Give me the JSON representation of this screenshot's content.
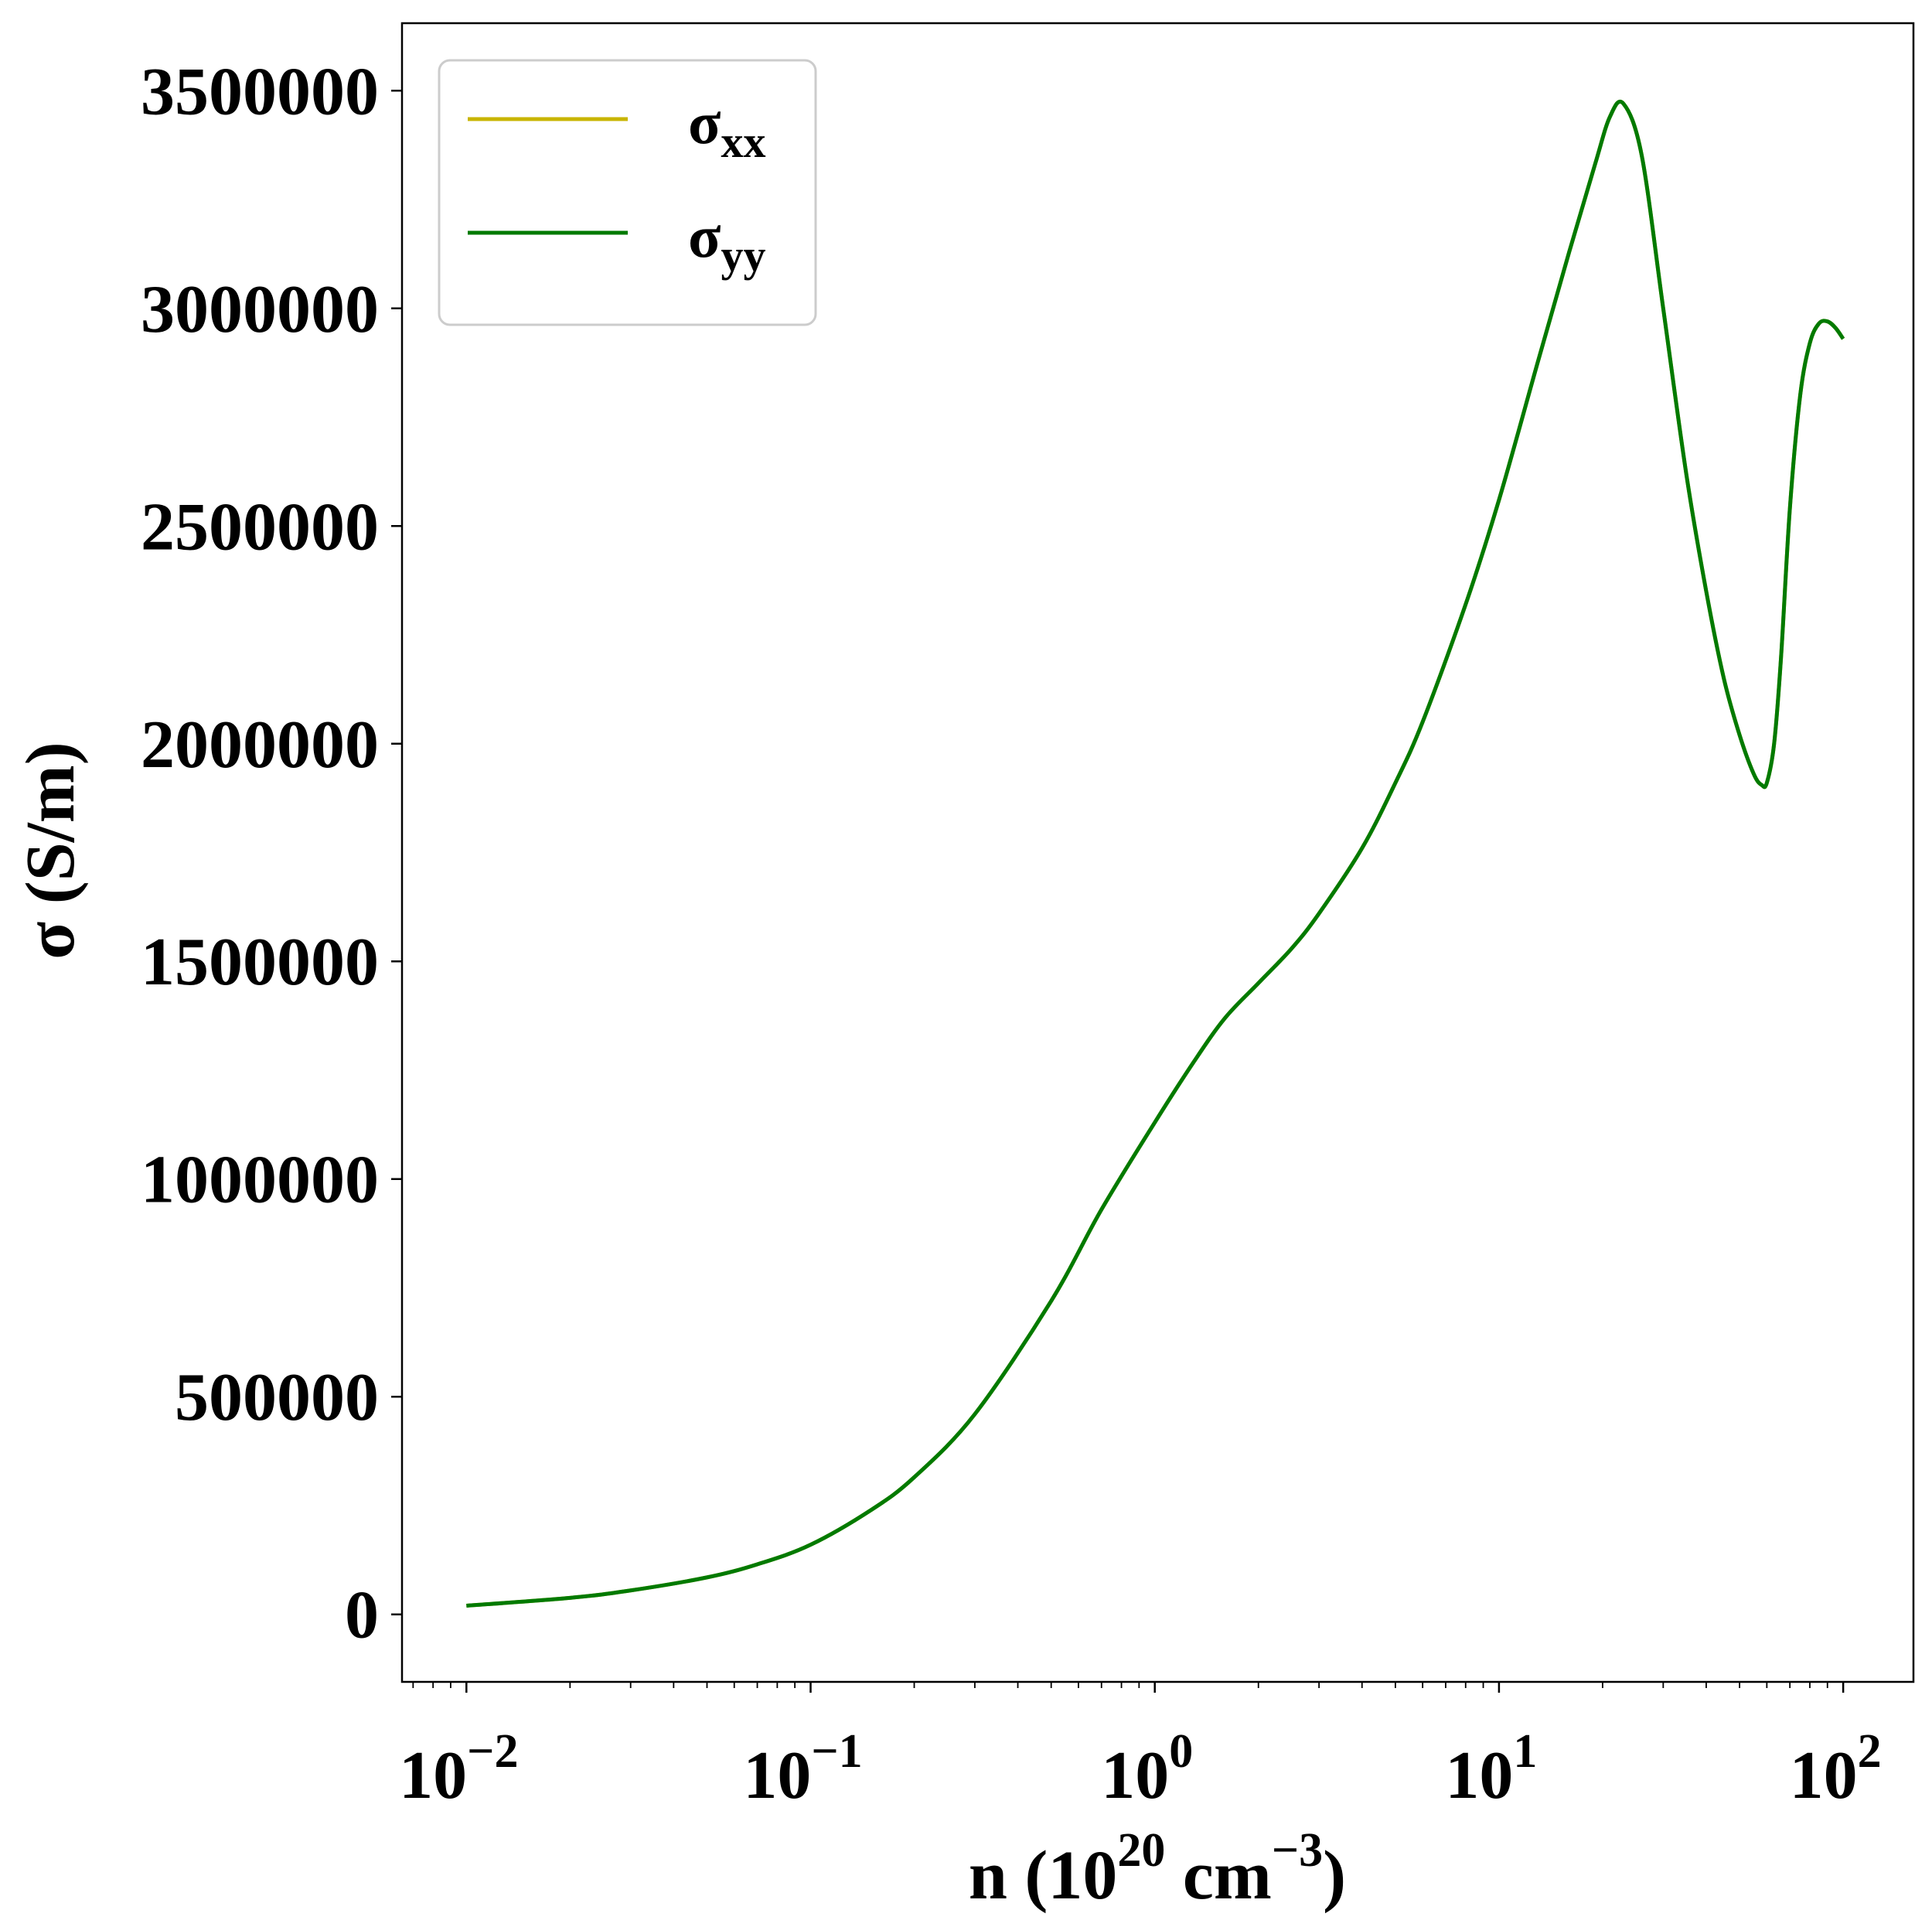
{
  "chart_data": {
    "type": "line",
    "xscale": "log",
    "xlabel": {
      "main": "n (10",
      "sup1": "20",
      "mid": " cm",
      "sup2": "−3",
      "end": ")"
    },
    "ylabel": "σ (S/m)",
    "xlim": [
      0.0065,
      160
    ],
    "ylim": [
      -155000,
      3655000
    ],
    "x_ticks": [
      {
        "value": 0.01,
        "base": "10",
        "exp": "−2"
      },
      {
        "value": 0.1,
        "base": "10",
        "exp": "−1"
      },
      {
        "value": 1,
        "base": "10",
        "exp": "0"
      },
      {
        "value": 10,
        "base": "10",
        "exp": "1"
      },
      {
        "value": 100,
        "base": "10",
        "exp": "2"
      }
    ],
    "y_ticks": [
      {
        "value": 0,
        "label": "0"
      },
      {
        "value": 500000,
        "label": "500000"
      },
      {
        "value": 1000000,
        "label": "1000000"
      },
      {
        "value": 1500000,
        "label": "1500000"
      },
      {
        "value": 2000000,
        "label": "2000000"
      },
      {
        "value": 2500000,
        "label": "2500000"
      },
      {
        "value": 3000000,
        "label": "3000000"
      },
      {
        "value": 3500000,
        "label": "3500000"
      }
    ],
    "grid": false,
    "legend": {
      "position": "top-left"
    },
    "series": [
      {
        "name": "σ",
        "sub": "xx",
        "color": "#c8b400",
        "x": [
          0.01,
          0.02,
          0.03,
          0.05,
          0.07,
          0.1,
          0.15,
          0.2,
          0.3,
          0.5,
          0.7,
          1.0,
          1.3,
          1.6,
          2.0,
          2.5,
          3.0,
          4.0,
          5.0,
          6.0,
          8.0,
          10.0,
          13.0,
          16.0,
          19.0,
          21.0,
          23.0,
          26.0,
          30.0,
          35.0,
          40.0,
          45.0,
          50.0,
          55.0,
          58.0,
          60.0,
          63.0,
          66.0,
          70.0,
          75.0,
          80.0,
          85.0,
          90.0,
          95.0,
          100.0
        ],
        "y": [
          20000,
          38000,
          55000,
          85000,
          115000,
          160000,
          240000,
          315000,
          460000,
          720000,
          930000,
          1130000,
          1270000,
          1370000,
          1450000,
          1530000,
          1610000,
          1760000,
          1910000,
          2050000,
          2320000,
          2560000,
          2880000,
          3130000,
          3330000,
          3440000,
          3470000,
          3350000,
          3000000,
          2620000,
          2350000,
          2150000,
          2020000,
          1930000,
          1905000,
          1910000,
          2000000,
          2200000,
          2540000,
          2800000,
          2920000,
          2965000,
          2970000,
          2955000,
          2930000
        ]
      },
      {
        "name": "σ",
        "sub": "yy",
        "color": "#007a00",
        "x": [
          0.01,
          0.02,
          0.03,
          0.05,
          0.07,
          0.1,
          0.15,
          0.2,
          0.3,
          0.5,
          0.7,
          1.0,
          1.3,
          1.6,
          2.0,
          2.5,
          3.0,
          4.0,
          5.0,
          6.0,
          8.0,
          10.0,
          13.0,
          16.0,
          19.0,
          21.0,
          23.0,
          26.0,
          30.0,
          35.0,
          40.0,
          45.0,
          50.0,
          55.0,
          58.0,
          60.0,
          63.0,
          66.0,
          70.0,
          75.0,
          80.0,
          85.0,
          90.0,
          95.0,
          100.0
        ],
        "y": [
          20000,
          38000,
          55000,
          85000,
          115000,
          160000,
          240000,
          315000,
          460000,
          720000,
          930000,
          1130000,
          1270000,
          1370000,
          1450000,
          1530000,
          1610000,
          1760000,
          1910000,
          2050000,
          2320000,
          2560000,
          2880000,
          3130000,
          3330000,
          3440000,
          3470000,
          3350000,
          3000000,
          2620000,
          2350000,
          2150000,
          2020000,
          1930000,
          1905000,
          1910000,
          2000000,
          2200000,
          2540000,
          2800000,
          2920000,
          2965000,
          2970000,
          2955000,
          2930000
        ]
      }
    ]
  }
}
